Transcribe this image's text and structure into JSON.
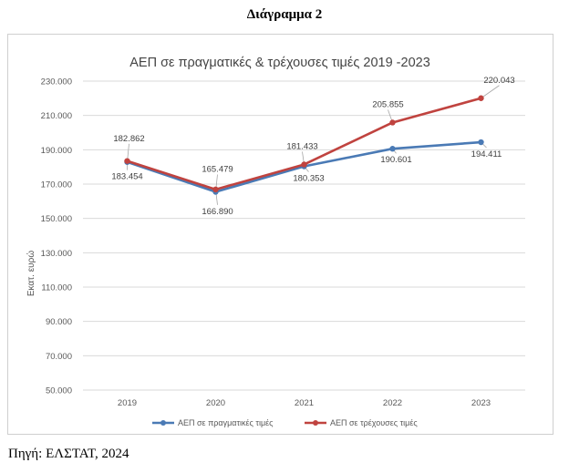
{
  "document": {
    "heading": "Διάγραμμα 2",
    "source": "Πηγή: ΕΛΣΤΑΤ, 2024"
  },
  "chart_data": {
    "type": "line",
    "title": "ΑΕΠ σε πραγματικές & τρέχουσες τιμές 2019 -2023",
    "xlabel": "",
    "ylabel": "Εκατ. ευρώ",
    "categories": [
      "2019",
      "2020",
      "2021",
      "2022",
      "2023"
    ],
    "ylim": [
      50000,
      230000
    ],
    "yticks": [
      50000,
      70000,
      90000,
      110000,
      130000,
      150000,
      170000,
      190000,
      210000,
      230000
    ],
    "ytick_labels": [
      "50.000",
      "70.000",
      "90.000",
      "110.000",
      "130.000",
      "150.000",
      "170.000",
      "190.000",
      "210.000",
      "230.000"
    ],
    "grid": true,
    "legend_position": "bottom",
    "series": [
      {
        "name": "ΑΕΠ σε πραγματικές τιμές",
        "color": "#4a7ab5",
        "values": [
          182862,
          165479,
          180353,
          190601,
          194411
        ],
        "labels": [
          "182.862",
          "165.479",
          "180.353",
          "190.601",
          "194.411"
        ]
      },
      {
        "name": "ΑΕΠ σε τρέχουσες τιμές",
        "color": "#c0433f",
        "values": [
          183454,
          166890,
          181433,
          205855,
          220043
        ],
        "labels": [
          "183.454",
          "166.890",
          "181.433",
          "205.855",
          "220.043"
        ]
      }
    ]
  }
}
